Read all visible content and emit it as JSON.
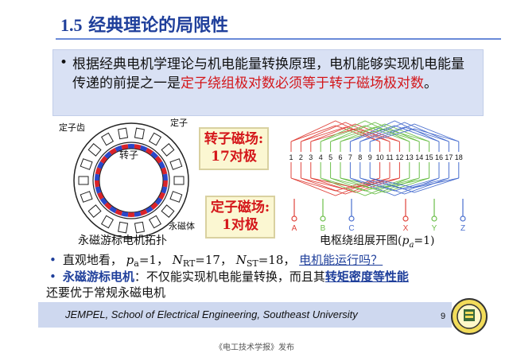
{
  "title": {
    "number": "1.5",
    "text": "经典理论的局限性"
  },
  "intro": {
    "bullet": "•",
    "text_plain": "根据经典电机学理论与机电能量转换原理，电机能够实现机电能量传递的前提之一是",
    "text_red": "定子绕组极对数必须等于转子磁场极对数",
    "text_end": "。"
  },
  "diagram": {
    "label_stator_tooth": "定子齿",
    "label_stator": "定子",
    "label_rotor": "转子",
    "label_magnet": "永磁体",
    "caption": "永磁游标电机拓扑"
  },
  "boxes": {
    "rotor_field": [
      "转子磁场:",
      "17对极"
    ],
    "stator_field": [
      "定子磁场:",
      "1对极"
    ]
  },
  "winding": {
    "slot_numbers": [
      "1",
      "2",
      "3",
      "4",
      "5",
      "6",
      "7",
      "8",
      "9",
      "10",
      "11",
      "12",
      "13",
      "14",
      "15",
      "16",
      "17",
      "18"
    ],
    "phases": [
      "A",
      "B",
      "C",
      "X",
      "Y",
      "Z"
    ],
    "phase_colors": [
      "#e0443c",
      "#6cbf4a",
      "#4a6fcf",
      "#e0443c",
      "#6cbf4a",
      "#4a6fcf"
    ],
    "caption_pre": "电枢绕组展开图(",
    "caption_var": "p",
    "caption_sub": "a",
    "caption_post": "=1)"
  },
  "bullets": [
    {
      "dot": "•",
      "p1": "直观地看，",
      "pa": "p",
      "pa_sub": "a",
      "pa_val": "=1，",
      "nrt": "N",
      "nrt_sub": "RT",
      "nrt_val": "=17，",
      "nst": "N",
      "nst_sub": "ST",
      "nst_val": "=18，",
      "link": "电机能运行吗？"
    },
    {
      "dot": "•",
      "bold": "永磁游标电机",
      "text": "：不仅能实现机电能量转换，而且其",
      "underline": "转矩密度等性能",
      "line2": "还要优于常规永磁电机"
    }
  ],
  "footer": {
    "text": "JEMPEL, School of Electrical Engineering, Southeast University",
    "page": "9"
  },
  "credit": "《电工技术学报》发布",
  "colors": {
    "title": "#1f3f9b",
    "red": "#d4161a",
    "footer_bg": "#ced8ef",
    "intro_bg": "#d9e1f4"
  }
}
